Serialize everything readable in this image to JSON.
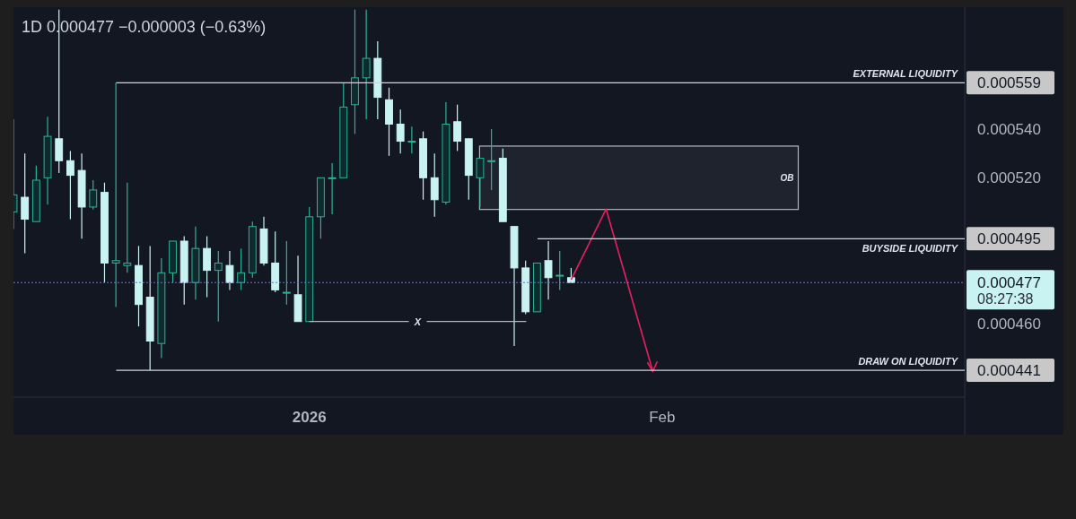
{
  "chart_data": {
    "type": "candlestick",
    "title": "1D  0.000477  −0.000003 (−0.63%)",
    "x": [
      "2025-12-06",
      "2025-12-07",
      "2025-12-08",
      "2025-12-09",
      "2025-12-10",
      "2025-12-11",
      "2025-12-12",
      "2025-12-13",
      "2025-12-14",
      "2025-12-15",
      "2025-12-16",
      "2025-12-17",
      "2025-12-18",
      "2025-12-19",
      "2025-12-20",
      "2025-12-21",
      "2025-12-22",
      "2025-12-23",
      "2025-12-24",
      "2025-12-25",
      "2025-12-26",
      "2025-12-27",
      "2025-12-28",
      "2025-12-29",
      "2025-12-30",
      "2025-12-31",
      "2026-01-01",
      "2026-01-02",
      "2026-01-03",
      "2026-01-04",
      "2026-01-05",
      "2026-01-06",
      "2026-01-07",
      "2026-01-08",
      "2026-01-09",
      "2026-01-10",
      "2026-01-11",
      "2026-01-12",
      "2026-01-13",
      "2026-01-14",
      "2026-01-15",
      "2026-01-16",
      "2026-01-17",
      "2026-01-18",
      "2026-01-19",
      "2026-01-20",
      "2026-01-21",
      "2026-01-22",
      "2026-01-23",
      "2026-01-24"
    ],
    "ohlc": [
      [
        0.000506,
        0.000544,
        0.000499,
        0.000513
      ],
      [
        0.000512,
        0.00053,
        0.000489,
        0.000503
      ],
      [
        0.000502,
        0.000525,
        0.000502,
        0.000519
      ],
      [
        0.00052,
        0.000545,
        0.000509,
        0.000537
      ],
      [
        0.000536,
        0.000589,
        0.000522,
        0.000527
      ],
      [
        0.000527,
        0.000531,
        0.000503,
        0.000521
      ],
      [
        0.000523,
        0.00053,
        0.000495,
        0.000508
      ],
      [
        0.000508,
        0.000519,
        0.000507,
        0.000515
      ],
      [
        0.000514,
        0.000518,
        0.000477,
        0.000485
      ],
      [
        0.000485,
        0.000559,
        0.000467,
        0.000486
      ],
      [
        0.000484,
        0.000518,
        0.000481,
        0.000485
      ],
      [
        0.000484,
        0.000492,
        0.000459,
        0.000468
      ],
      [
        0.000471,
        0.000492,
        0.000441,
        0.000453
      ],
      [
        0.000452,
        0.000487,
        0.000446,
        0.000481
      ],
      [
        0.000481,
        0.000494,
        0.000477,
        0.000494
      ],
      [
        0.000494,
        0.000496,
        0.000468,
        0.000477
      ],
      [
        0.000477,
        0.0005,
        0.00047,
        0.000491
      ],
      [
        0.000491,
        0.000496,
        0.000471,
        0.000482
      ],
      [
        0.000482,
        0.00049,
        0.000461,
        0.000485
      ],
      [
        0.000484,
        0.00049,
        0.000474,
        0.000477
      ],
      [
        0.000477,
        0.000491,
        0.000474,
        0.000481
      ],
      [
        0.000481,
        0.000502,
        0.000479,
        0.0005
      ],
      [
        0.000499,
        0.000504,
        0.000484,
        0.000485
      ],
      [
        0.000485,
        0.000498,
        0.000473,
        0.000474
      ],
      [
        0.000473,
        0.000494,
        0.000468,
        0.000473
      ],
      [
        0.000472,
        0.000488,
        0.000461,
        0.000461
      ],
      [
        0.000461,
        0.000508,
        0.000461,
        0.000504
      ],
      [
        0.000504,
        0.00052,
        0.000495,
        0.00052
      ],
      [
        0.00052,
        0.000526,
        0.000505,
        0.00052
      ],
      [
        0.00052,
        0.000559,
        0.00052,
        0.000549
      ],
      [
        0.00055,
        0.000589,
        0.000538,
        0.000561
      ],
      [
        0.000561,
        0.000589,
        0.000544,
        0.000569
      ],
      [
        0.000569,
        0.000576,
        0.000544,
        0.000553
      ],
      [
        0.000552,
        0.000557,
        0.000529,
        0.000542
      ],
      [
        0.000542,
        0.000548,
        0.00053,
        0.000535
      ],
      [
        0.000535,
        0.000541,
        0.00053,
        0.000535
      ],
      [
        0.000536,
        0.000539,
        0.000511,
        0.00052
      ],
      [
        0.00052,
        0.00053,
        0.000504,
        0.000511
      ],
      [
        0.00051,
        0.000551,
        0.000509,
        0.000542
      ],
      [
        0.000543,
        0.00055,
        0.000531,
        0.000535
      ],
      [
        0.000536,
        0.000536,
        0.000511,
        0.000521
      ],
      [
        0.00052,
        0.000528,
        0.000508,
        0.000528
      ],
      [
        0.000527,
        0.00054,
        0.000515,
        0.000527
      ],
      [
        0.000528,
        0.000532,
        0.000502,
        0.000502
      ],
      [
        0.0005,
        0.0005,
        0.000451,
        0.000483
      ],
      [
        0.000483,
        0.000486,
        0.000464,
        0.000465
      ],
      [
        0.000465,
        0.000485,
        0.000465,
        0.000485
      ],
      [
        0.000486,
        0.000494,
        0.00047,
        0.000479
      ],
      [
        0.00048,
        0.00049,
        0.000474,
        0.00048
      ],
      [
        0.000479,
        0.000483,
        0.000477,
        0.000477
      ]
    ],
    "xlim": [
      "2025-12-06",
      "2026-02-27T14:00"
    ],
    "xticks": [
      {
        "value": "2026-01-01",
        "label": "2026"
      },
      {
        "value": "2026-02-01",
        "label": "Feb"
      }
    ],
    "ylim": [
      0.00043,
      0.00059
    ],
    "yticks": [
      {
        "value": 0.000441,
        "label": "0.000441"
      },
      {
        "value": 0.00046,
        "label": "0.000460"
      },
      {
        "value": 0.000477,
        "label": "0.000477"
      },
      {
        "value": 0.000495,
        "label": "0.000495"
      },
      {
        "value": 0.00052,
        "label": "0.000520"
      },
      {
        "value": 0.00054,
        "label": "0.000540"
      },
      {
        "value": 0.000559,
        "label": "0.000559"
      }
    ],
    "ref_lines": [
      {
        "axis": "y",
        "value": 0.000559,
        "label": "EXTERNAL LIQUIDITY",
        "color": "#d1d4dc"
      },
      {
        "axis": "y",
        "value": 0.000495,
        "label": "BUYSIDE LIQUIDITY",
        "color": "#d1d4dc"
      },
      {
        "axis": "y",
        "value": 0.000441,
        "label": "DRAW ON LIQUIDITY",
        "color": "#d1d4dc"
      },
      {
        "axis": "y",
        "value": 0.000477,
        "color": "#7b61ff",
        "line_style": "dotted"
      },
      {
        "axis": "y",
        "value": 0.000461,
        "label": "X",
        "color": "#b2b5be"
      }
    ],
    "bands": [
      {
        "axis": "y",
        "from": 0.000507,
        "to": 0.000533,
        "label": "OB",
        "color": "#b2b5be"
      }
    ],
    "annotations": [
      "08:27:38"
    ],
    "grid": false
  }
}
